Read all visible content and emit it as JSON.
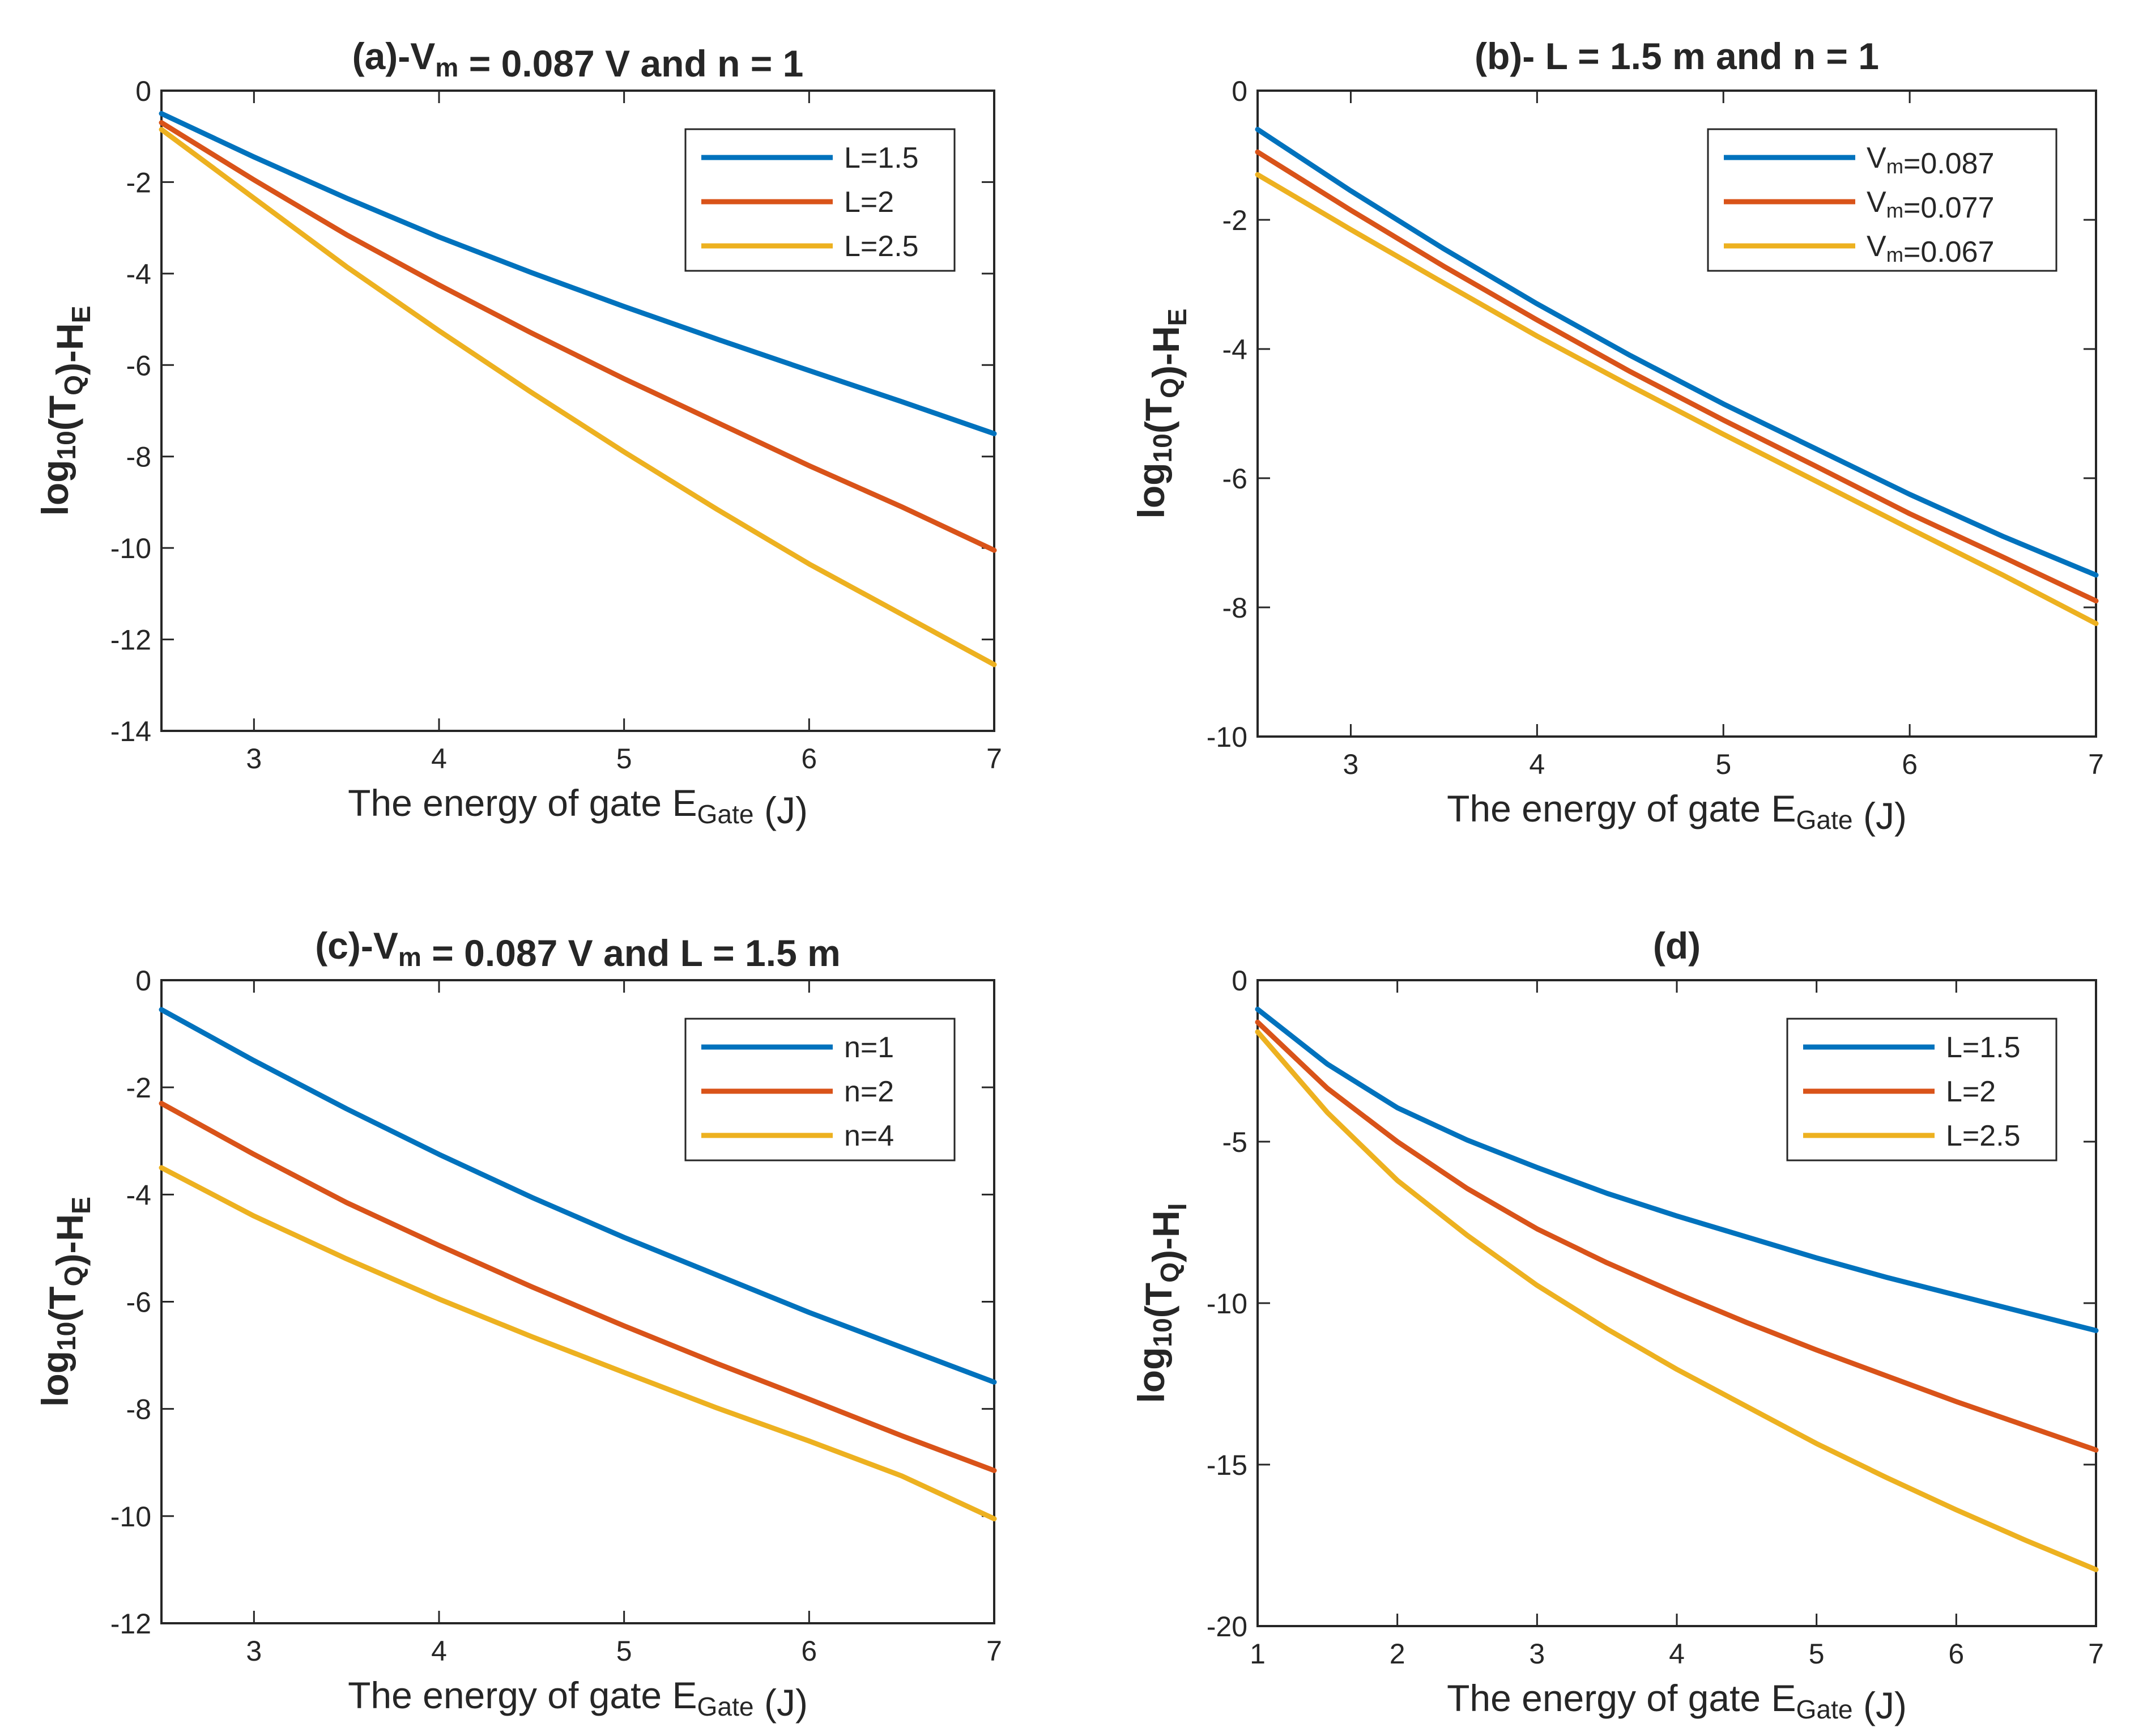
{
  "colors": {
    "blue": "#0072BD",
    "orange": "#D95319",
    "yellow": "#EDB120",
    "axis": "#262626",
    "background": "#ffffff"
  },
  "chart_data": [
    {
      "type": "line",
      "title": "(a)-V_m = 0.087 V and n = 1",
      "title_parts": {
        "pre": "(a)-V",
        "sub": "m",
        "post": "  =  0.087  V  and  n  =  1"
      },
      "xlabel": "The energy of gate E_Gate (J)",
      "xlabel_parts": {
        "pre": "The  energy  of  gate  E",
        "sub": "Gate",
        "post": "  (J)"
      },
      "ylabel": "log10(TQ)-HE",
      "ylabel_parts": {
        "a": "log",
        "a_sub": "10",
        "b": "(T",
        "b_sub": "Q",
        "c": ")-H",
        "c_sub": "E"
      },
      "xlim": [
        2.5,
        7
      ],
      "ylim": [
        -14,
        0
      ],
      "xticks": [
        "3",
        "4",
        "5",
        "6",
        "7"
      ],
      "xtick_values": [
        3,
        4,
        5,
        6,
        7
      ],
      "yticks": [
        "0",
        "-2",
        "-4",
        "-6",
        "-8",
        "-10",
        "-12",
        "-14"
      ],
      "ytick_values": [
        0,
        -2,
        -4,
        -6,
        -8,
        -10,
        -12,
        -14
      ],
      "legend_position": "top-right",
      "x": [
        2.5,
        3,
        3.5,
        4,
        4.5,
        5,
        5.5,
        6,
        6.5,
        7
      ],
      "series": [
        {
          "name": "L=1.5",
          "legend_parts": {
            "pre": "L=1.5",
            "sub": "",
            "post": ""
          },
          "color": "blue",
          "values": [
            -0.5,
            -1.45,
            -2.35,
            -3.2,
            -3.98,
            -4.72,
            -5.43,
            -6.12,
            -6.8,
            -7.5
          ]
        },
        {
          "name": "L=2",
          "legend_parts": {
            "pre": "L=2",
            "sub": "",
            "post": ""
          },
          "color": "orange",
          "values": [
            -0.7,
            -1.95,
            -3.15,
            -4.25,
            -5.3,
            -6.3,
            -7.25,
            -8.2,
            -9.1,
            -10.05
          ]
        },
        {
          "name": "L=2.5",
          "legend_parts": {
            "pre": "L=2.5",
            "sub": "",
            "post": ""
          },
          "color": "yellow",
          "values": [
            -0.85,
            -2.35,
            -3.85,
            -5.25,
            -6.6,
            -7.9,
            -9.15,
            -10.35,
            -11.45,
            -12.55
          ]
        }
      ]
    },
    {
      "type": "line",
      "title": "(b)- L = 1.5 m and n = 1",
      "title_parts": {
        "pre": "(b)- L = 1.5 m and n = 1",
        "sub": "",
        "post": ""
      },
      "xlabel": "The energy of gate E_Gate (J)",
      "xlabel_parts": {
        "pre": "The  energy  of  gate  E",
        "sub": "Gate",
        "post": "  (J)"
      },
      "ylabel": "log10(TQ)-HE",
      "ylabel_parts": {
        "a": "log",
        "a_sub": "10",
        "b": "(T",
        "b_sub": "Q",
        "c": ")-H",
        "c_sub": "E"
      },
      "xlim": [
        2.5,
        7
      ],
      "ylim": [
        -10,
        0
      ],
      "xticks": [
        "3",
        "4",
        "5",
        "6",
        "7"
      ],
      "xtick_values": [
        3,
        4,
        5,
        6,
        7
      ],
      "yticks": [
        "0",
        "-2",
        "-4",
        "-6",
        "-8",
        "-10"
      ],
      "ytick_values": [
        0,
        -2,
        -4,
        -6,
        -8,
        -10
      ],
      "legend_position": "top-right",
      "x": [
        2.5,
        3,
        3.5,
        4,
        4.5,
        5,
        5.5,
        6,
        6.5,
        7
      ],
      "series": [
        {
          "name": "Vm=0.087",
          "legend_parts": {
            "pre": "V",
            "sub": "m",
            "post": "=0.087"
          },
          "color": "blue",
          "values": [
            -0.6,
            -1.55,
            -2.45,
            -3.3,
            -4.1,
            -4.85,
            -5.55,
            -6.25,
            -6.9,
            -7.5
          ]
        },
        {
          "name": "Vm=0.077",
          "legend_parts": {
            "pre": "V",
            "sub": "m",
            "post": "=0.077"
          },
          "color": "orange",
          "values": [
            -0.95,
            -1.85,
            -2.72,
            -3.55,
            -4.35,
            -5.1,
            -5.82,
            -6.55,
            -7.22,
            -7.9
          ]
        },
        {
          "name": "Vm=0.067",
          "legend_parts": {
            "pre": "V",
            "sub": "m",
            "post": "=0.067"
          },
          "color": "yellow",
          "values": [
            -1.3,
            -2.15,
            -2.98,
            -3.8,
            -4.57,
            -5.32,
            -6.05,
            -6.78,
            -7.5,
            -8.25
          ]
        }
      ]
    },
    {
      "type": "line",
      "title": "(c)-V_m = 0.087 V and L = 1.5 m",
      "title_parts": {
        "pre": "(c)-V",
        "sub": "m",
        "post": "  =  0.087  V  and  L  =  1.5  m"
      },
      "xlabel": "The energy of gate E_Gate (J)",
      "xlabel_parts": {
        "pre": "The  energy  of  gate  E",
        "sub": "Gate",
        "post": "  (J)"
      },
      "ylabel": "log10(TQ)-HE",
      "ylabel_parts": {
        "a": "log",
        "a_sub": "10",
        "b": "(T",
        "b_sub": "Q",
        "c": ")-H",
        "c_sub": "E"
      },
      "xlim": [
        2.5,
        7
      ],
      "ylim": [
        -12,
        0
      ],
      "xticks": [
        "3",
        "4",
        "5",
        "6",
        "7"
      ],
      "xtick_values": [
        3,
        4,
        5,
        6,
        7
      ],
      "yticks": [
        "0",
        "-2",
        "-4",
        "-6",
        "-8",
        "-10",
        "-12"
      ],
      "ytick_values": [
        0,
        -2,
        -4,
        -6,
        -8,
        -10,
        -12
      ],
      "legend_position": "top-right",
      "x": [
        2.5,
        3,
        3.5,
        4,
        4.5,
        5,
        5.5,
        6,
        6.5,
        7
      ],
      "series": [
        {
          "name": "n=1",
          "legend_parts": {
            "pre": "n=1",
            "sub": "",
            "post": ""
          },
          "color": "blue",
          "values": [
            -0.55,
            -1.5,
            -2.4,
            -3.25,
            -4.05,
            -4.8,
            -5.5,
            -6.2,
            -6.85,
            -7.5
          ]
        },
        {
          "name": "n=2",
          "legend_parts": {
            "pre": "n=2",
            "sub": "",
            "post": ""
          },
          "color": "orange",
          "values": [
            -2.3,
            -3.25,
            -4.15,
            -4.95,
            -5.72,
            -6.45,
            -7.15,
            -7.82,
            -8.5,
            -9.15
          ]
        },
        {
          "name": "n=4",
          "legend_parts": {
            "pre": "n=4",
            "sub": "",
            "post": ""
          },
          "color": "yellow",
          "values": [
            -3.5,
            -4.4,
            -5.2,
            -5.95,
            -6.65,
            -7.32,
            -7.98,
            -8.6,
            -9.25,
            -10.05
          ]
        }
      ]
    },
    {
      "type": "line",
      "title": "(d)",
      "title_parts": {
        "pre": "(d)",
        "sub": "",
        "post": ""
      },
      "xlabel": "The energy of gate E_Gate (J)",
      "xlabel_parts": {
        "pre": "The  energy  of  gate  E",
        "sub": "Gate",
        "post": "  (J)"
      },
      "ylabel": "log10(TQ)-HI",
      "ylabel_parts": {
        "a": "log",
        "a_sub": "10",
        "b": "(T",
        "b_sub": "Q",
        "c": ")-H",
        "c_sub": "I"
      },
      "xlim": [
        1,
        7
      ],
      "ylim": [
        -20,
        0
      ],
      "xticks": [
        "1",
        "2",
        "3",
        "4",
        "5",
        "6",
        "7"
      ],
      "xtick_values": [
        1,
        2,
        3,
        4,
        5,
        6,
        7
      ],
      "yticks": [
        "0",
        "-5",
        "-10",
        "-15",
        "-20"
      ],
      "ytick_values": [
        0,
        -5,
        -10,
        -15,
        -20
      ],
      "legend_position": "top-right",
      "x": [
        1,
        1.5,
        2,
        2.5,
        3,
        3.5,
        4,
        4.5,
        5,
        5.5,
        6,
        6.5,
        7
      ],
      "series": [
        {
          "name": "L=1.5",
          "legend_parts": {
            "pre": "L=1.5",
            "sub": "",
            "post": ""
          },
          "color": "blue",
          "values": [
            -0.9,
            -2.6,
            -3.95,
            -4.95,
            -5.8,
            -6.6,
            -7.3,
            -7.95,
            -8.6,
            -9.2,
            -9.75,
            -10.3,
            -10.85
          ]
        },
        {
          "name": "L=2",
          "legend_parts": {
            "pre": "L=2",
            "sub": "",
            "post": ""
          },
          "color": "orange",
          "values": [
            -1.3,
            -3.35,
            -5.0,
            -6.45,
            -7.7,
            -8.75,
            -9.7,
            -10.6,
            -11.45,
            -12.25,
            -13.05,
            -13.8,
            -14.55
          ]
        },
        {
          "name": "L=2.5",
          "legend_parts": {
            "pre": "L=2.5",
            "sub": "",
            "post": ""
          },
          "color": "yellow",
          "values": [
            -1.6,
            -4.1,
            -6.2,
            -7.9,
            -9.45,
            -10.8,
            -12.05,
            -13.2,
            -14.35,
            -15.4,
            -16.4,
            -17.35,
            -18.25
          ]
        }
      ]
    }
  ]
}
